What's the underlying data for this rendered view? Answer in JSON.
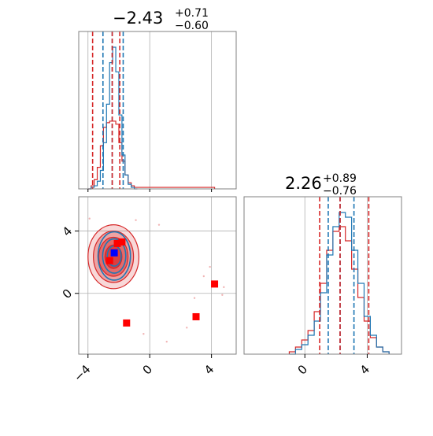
{
  "colors": {
    "blue": "#1f77b4",
    "red": "#d62728",
    "marker_red": "#ff0000",
    "marker_blue": "#0000ff",
    "grid": "#b0b0b0",
    "frame": "#808080"
  },
  "titles": {
    "param1": {
      "median": "−2.43",
      "upper": "+0.71",
      "lower": "−0.60"
    },
    "param2": {
      "median": "2.26",
      "upper": "+0.89",
      "lower": "−0.76"
    }
  },
  "chart_data": {
    "type": "corner",
    "grid": true,
    "axes": {
      "param1": {
        "range": [
          -4.6,
          5.6
        ],
        "ticks": [
          -4,
          0,
          4
        ],
        "tick_labels": [
          "−4",
          "0",
          "4"
        ]
      },
      "param2": {
        "range": [
          -3.9,
          6.2
        ],
        "ticks": [
          0,
          4
        ],
        "tick_labels": [
          "0",
          "4"
        ]
      }
    },
    "series": [
      {
        "color": "blue",
        "quantiles_param1": [
          -3.03,
          -2.43,
          -1.72
        ],
        "quantiles_param2": [
          1.5,
          2.26,
          3.15
        ],
        "hist_param1": {
          "x": [
            -4.0,
            -3.8,
            -3.6,
            -3.4,
            -3.2,
            -3.0,
            -2.8,
            -2.6,
            -2.4,
            -2.2,
            -2.0,
            -1.8,
            -1.6,
            -1.4,
            -1.2,
            -1.0
          ],
          "counts": [
            0,
            1,
            2,
            5,
            12,
            30,
            55,
            82,
            92,
            76,
            48,
            22,
            9,
            3,
            1,
            0
          ]
        },
        "hist_param2": {
          "x": [
            -1.0,
            -0.6,
            -0.2,
            0.2,
            0.6,
            1.0,
            1.4,
            1.8,
            2.2,
            2.6,
            3.0,
            3.4,
            3.8,
            4.2,
            4.6,
            5.0
          ],
          "counts": [
            0,
            2,
            4,
            8,
            14,
            26,
            42,
            54,
            60,
            58,
            44,
            30,
            16,
            8,
            3,
            1
          ]
        }
      },
      {
        "color": "red",
        "quantiles_param1": [
          -3.7,
          -2.43,
          -1.94
        ],
        "quantiles_param2": [
          0.95,
          2.26,
          4.1
        ],
        "hist_param1": {
          "x": [
            -4.0,
            -3.8,
            -3.6,
            -3.4,
            -3.2,
            -3.0,
            -2.8,
            -2.6,
            -2.4,
            -2.2,
            -2.0,
            -1.8,
            -1.6,
            -1.4,
            -1.2,
            -1.0,
            0.0,
            4.0
          ],
          "counts": [
            0,
            2,
            6,
            14,
            28,
            40,
            43,
            44,
            44,
            42,
            30,
            18,
            9,
            4,
            2,
            1,
            1,
            1
          ]
        },
        "hist_param2": {
          "x": [
            -1.0,
            -0.6,
            -0.2,
            0.2,
            0.6,
            1.0,
            1.4,
            1.8,
            2.2,
            2.6,
            3.0,
            3.4,
            3.8,
            4.2,
            4.6,
            5.0
          ],
          "counts": [
            1,
            3,
            6,
            10,
            18,
            30,
            44,
            52,
            54,
            48,
            36,
            24,
            14,
            7,
            3,
            1
          ]
        }
      }
    ],
    "markers": [
      {
        "color": "marker_red",
        "x": -2.1,
        "y": 3.2
      },
      {
        "color": "marker_red",
        "x": -1.8,
        "y": 3.3
      },
      {
        "color": "marker_red",
        "x": -2.6,
        "y": 2.1
      },
      {
        "color": "marker_blue",
        "x": -2.3,
        "y": 2.6
      },
      {
        "color": "marker_red",
        "x": -1.5,
        "y": -1.9
      },
      {
        "color": "marker_red",
        "x": 3.0,
        "y": -1.5
      },
      {
        "color": "marker_red",
        "x": 4.2,
        "y": 0.6
      }
    ],
    "scatter_outliers": [
      {
        "x": 2.9,
        "y": -0.3
      },
      {
        "x": 3.5,
        "y": 1.1
      },
      {
        "x": 2.4,
        "y": -2.2
      },
      {
        "x": 1.1,
        "y": -3.1
      },
      {
        "x": 4.7,
        "y": -0.1
      },
      {
        "x": -0.4,
        "y": -2.6
      },
      {
        "x": 0.6,
        "y": 4.4
      },
      {
        "x": -0.9,
        "y": 4.7
      },
      {
        "x": 3.9,
        "y": 1.7
      },
      {
        "x": -3.9,
        "y": 4.8
      },
      {
        "x": 4.8,
        "y": 0.4
      }
    ]
  }
}
